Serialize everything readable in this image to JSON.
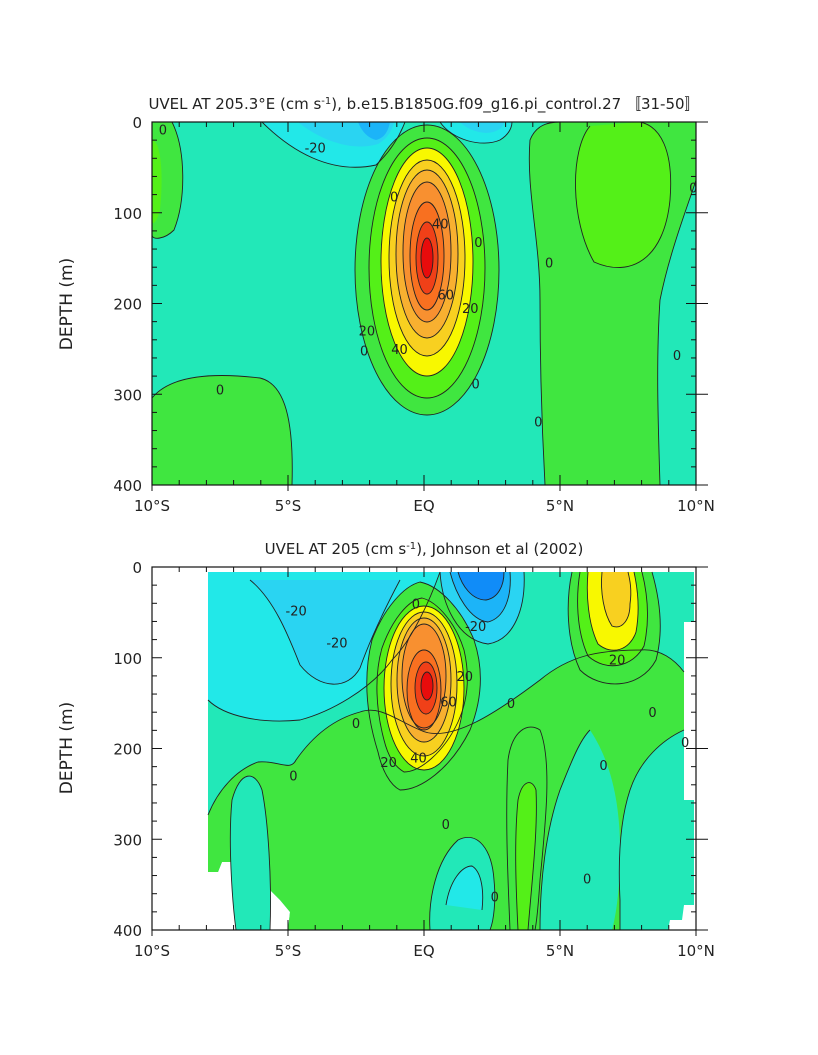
{
  "chart_data": [
    {
      "type": "heatmap",
      "subtype": "filled-contour",
      "title_pre": "UVEL AT 205.3°E (cm s",
      "title_sup": "-1",
      "title_post": "), b.e15.B1850G.f09_g16.pi_control.27 〚31-50〛",
      "ylabel": "DEPTH (m)",
      "xlabel": "",
      "xlim": [
        -10,
        10
      ],
      "ylim": [
        400,
        0
      ],
      "y_inverted": true,
      "xticks": [
        -10,
        -5,
        0,
        5,
        10
      ],
      "xtick_labels": [
        "10°S",
        "5°S",
        "EQ",
        "5°N",
        "10°N"
      ],
      "yticks": [
        0,
        100,
        200,
        300,
        400
      ],
      "ytick_labels": [
        "0",
        "100",
        "200",
        "300",
        "400"
      ],
      "contour_interval": 10,
      "core": {
        "lat": 0.0,
        "depth": 150,
        "max_speed": 80
      },
      "contour_labels": [
        {
          "text": "0",
          "lat": -9.6,
          "depth": 8
        },
        {
          "text": "-20",
          "lat": -4.0,
          "depth": 28
        },
        {
          "text": "0",
          "lat": -1.1,
          "depth": 82
        },
        {
          "text": "40",
          "lat": 0.6,
          "depth": 112
        },
        {
          "text": "0",
          "lat": 2.0,
          "depth": 132
        },
        {
          "text": "0",
          "lat": 4.6,
          "depth": 155
        },
        {
          "text": "60",
          "lat": 0.8,
          "depth": 190
        },
        {
          "text": "20",
          "lat": 1.7,
          "depth": 205
        },
        {
          "text": "20",
          "lat": -2.1,
          "depth": 230
        },
        {
          "text": "40",
          "lat": -0.9,
          "depth": 250
        },
        {
          "text": "0",
          "lat": -2.2,
          "depth": 252
        },
        {
          "text": "0",
          "lat": 9.3,
          "depth": 257
        },
        {
          "text": "0",
          "lat": -7.5,
          "depth": 295
        },
        {
          "text": "0",
          "lat": 1.9,
          "depth": 288
        },
        {
          "text": "0",
          "lat": 4.2,
          "depth": 330
        },
        {
          "text": "0",
          "lat": 9.9,
          "depth": 72
        }
      ]
    },
    {
      "type": "heatmap",
      "subtype": "filled-contour",
      "title_pre": "UVEL AT 205 (cm s",
      "title_sup": "-1",
      "title_post": "), Johnson et al (2002)",
      "ylabel": "DEPTH (m)",
      "xlabel": "",
      "xlim": [
        -10,
        10
      ],
      "ylim": [
        400,
        0
      ],
      "y_inverted": true,
      "xticks": [
        -10,
        -5,
        0,
        5,
        10
      ],
      "xtick_labels": [
        "10°S",
        "5°S",
        "EQ",
        "5°N",
        "10°N"
      ],
      "yticks": [
        0,
        100,
        200,
        300,
        400
      ],
      "ytick_labels": [
        "0",
        "100",
        "200",
        "300",
        "400"
      ],
      "contour_interval": 10,
      "core": {
        "lat": 0.0,
        "depth": 135,
        "max_speed": 80
      },
      "contour_labels": [
        {
          "text": "-20",
          "lat": -4.7,
          "depth": 48
        },
        {
          "text": "-20",
          "lat": -3.2,
          "depth": 83
        },
        {
          "text": "0",
          "lat": -0.3,
          "depth": 40
        },
        {
          "text": "-20",
          "lat": 1.9,
          "depth": 65
        },
        {
          "text": "20",
          "lat": 1.5,
          "depth": 120
        },
        {
          "text": "60",
          "lat": 0.9,
          "depth": 148
        },
        {
          "text": "0",
          "lat": 3.2,
          "depth": 150
        },
        {
          "text": "0",
          "lat": -2.5,
          "depth": 172
        },
        {
          "text": "20",
          "lat": 7.1,
          "depth": 102
        },
        {
          "text": "0",
          "lat": 8.4,
          "depth": 160
        },
        {
          "text": "0",
          "lat": 9.6,
          "depth": 193
        },
        {
          "text": "0",
          "lat": 6.6,
          "depth": 218
        },
        {
          "text": "20",
          "lat": -1.3,
          "depth": 215
        },
        {
          "text": "40",
          "lat": -0.2,
          "depth": 210
        },
        {
          "text": "0",
          "lat": -4.8,
          "depth": 230
        },
        {
          "text": "0",
          "lat": 0.8,
          "depth": 283
        },
        {
          "text": "0",
          "lat": 6.0,
          "depth": 343
        },
        {
          "text": "0",
          "lat": 2.6,
          "depth": 363
        }
      ],
      "data_extent": {
        "lat_min": -8.0,
        "lat_max": 9.9
      }
    }
  ]
}
